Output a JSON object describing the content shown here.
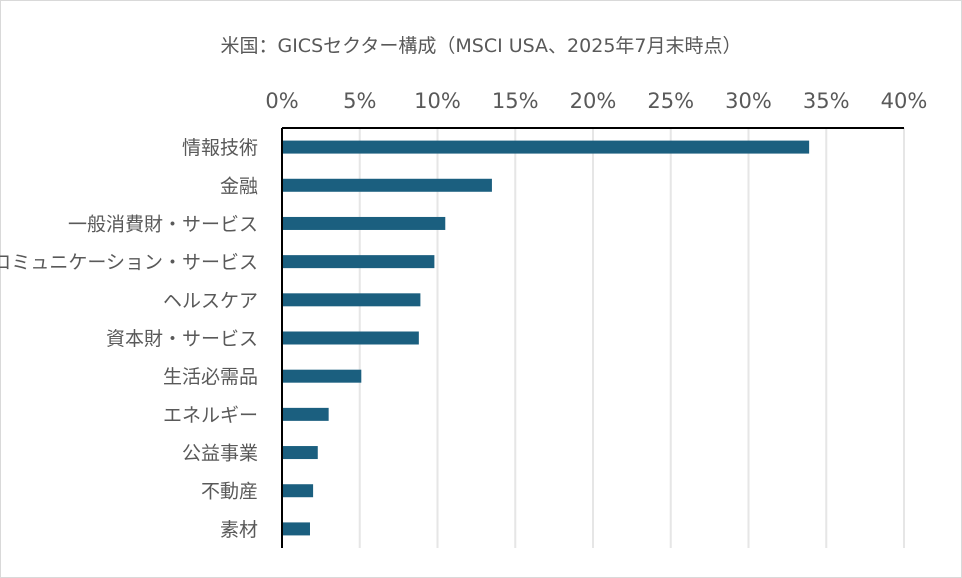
{
  "chart_data": {
    "type": "bar",
    "orientation": "horizontal",
    "title": "米国：GICSセクター構成（MSCI USA、2025年7月末時点）",
    "categories": [
      "情報技術",
      "金融",
      "一般消費財・サービス",
      "コミュニケーション・サービス",
      "ヘルスケア",
      "資本財・サービス",
      "生活必需品",
      "エネルギー",
      "公益事業",
      "不動産",
      "素材"
    ],
    "values": [
      33.9,
      13.5,
      10.5,
      9.8,
      8.9,
      8.8,
      5.1,
      3.0,
      2.3,
      2.0,
      1.8
    ],
    "unit": "%",
    "xlim": [
      0,
      40
    ],
    "xticks": [
      "0%",
      "5%",
      "10%",
      "15%",
      "20%",
      "25%",
      "30%",
      "35%",
      "40%"
    ],
    "xaxis_position": "top",
    "grid": true,
    "legend": "none",
    "colors": {
      "bar": "#1B5F7F",
      "grid": "#E6E6E6",
      "axis": "#000000",
      "text": "#595959",
      "border": "#D9D9D9"
    }
  }
}
